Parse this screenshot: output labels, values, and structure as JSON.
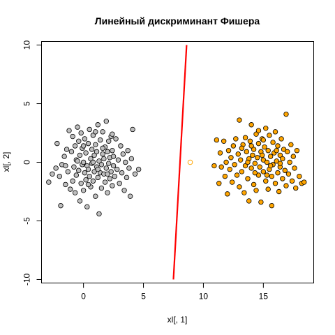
{
  "chart_data": {
    "type": "scatter",
    "title": "Линейный дискриминант Фишера",
    "xlabel": "xl[, 1]",
    "ylabel": "xl[, 2]",
    "xlim": [
      -3.5,
      19.2
    ],
    "ylim": [
      -10.3,
      10.3
    ],
    "x_ticks": [
      0,
      5,
      10,
      15
    ],
    "x_tick_labels": [
      "0",
      "5",
      "10",
      "15"
    ],
    "y_ticks": [
      -10,
      -5,
      0,
      5,
      10
    ],
    "y_tick_labels": [
      "-10",
      "-5",
      "0",
      "5",
      "10"
    ],
    "grid": false,
    "legend": "none",
    "series": [
      {
        "color": "#bebebe",
        "marker": "filled-circle",
        "points": [
          [
            -2.9,
            -1.7
          ],
          [
            -2.6,
            -1.0
          ],
          [
            -2.3,
            -0.5
          ],
          [
            -2.2,
            1.6
          ],
          [
            -2.0,
            -1.2
          ],
          [
            -1.9,
            -3.7
          ],
          [
            -1.8,
            -0.2
          ],
          [
            -1.6,
            0.5
          ],
          [
            -1.5,
            -1.9
          ],
          [
            -1.4,
            1.1
          ],
          [
            -1.3,
            -0.8
          ],
          [
            -1.2,
            2.7
          ],
          [
            -1.1,
            -2.3
          ],
          [
            -1.0,
            0.9
          ],
          [
            -0.9,
            -1.6
          ],
          [
            -0.9,
            2.2
          ],
          [
            -0.8,
            -0.4
          ],
          [
            -0.7,
            -2.6
          ],
          [
            -0.7,
            1.4
          ],
          [
            -0.6,
            0.2
          ],
          [
            -0.6,
            -1.1
          ],
          [
            -0.5,
            3.0
          ],
          [
            -0.4,
            -0.7
          ],
          [
            -0.4,
            1.8
          ],
          [
            -0.3,
            -3.3
          ],
          [
            -0.3,
            0.6
          ],
          [
            -0.2,
            -1.8
          ],
          [
            -0.2,
            2.5
          ],
          [
            -0.1,
            -0.2
          ],
          [
            -0.1,
            1.2
          ],
          [
            0.0,
            -2.4
          ],
          [
            0.0,
            0.0
          ],
          [
            0.1,
            -0.9
          ],
          [
            0.1,
            2.0
          ],
          [
            0.2,
            -1.5
          ],
          [
            0.2,
            0.8
          ],
          [
            0.3,
            -0.3
          ],
          [
            0.3,
            -3.8
          ],
          [
            0.4,
            1.6
          ],
          [
            0.4,
            -0.6
          ],
          [
            0.5,
            2.8
          ],
          [
            0.5,
            -1.2
          ],
          [
            0.6,
            0.3
          ],
          [
            0.6,
            -2.1
          ],
          [
            0.7,
            1.1
          ],
          [
            0.7,
            -0.1
          ],
          [
            0.8,
            -1.6
          ],
          [
            0.8,
            2.3
          ],
          [
            0.9,
            0.6
          ],
          [
            0.9,
            -0.8
          ],
          [
            1.0,
            -2.9
          ],
          [
            1.0,
            1.5
          ],
          [
            1.1,
            -0.4
          ],
          [
            1.1,
            0.9
          ],
          [
            1.2,
            -1.3
          ],
          [
            1.2,
            3.2
          ],
          [
            1.3,
            0.1
          ],
          [
            1.3,
            -4.4
          ],
          [
            1.4,
            -0.9
          ],
          [
            1.4,
            1.9
          ],
          [
            1.5,
            -0.2
          ],
          [
            1.5,
            -2.2
          ],
          [
            1.6,
            0.7
          ],
          [
            1.6,
            2.6
          ],
          [
            1.7,
            -1.0
          ],
          [
            1.7,
            0.3
          ],
          [
            1.8,
            -1.7
          ],
          [
            1.8,
            1.3
          ],
          [
            1.9,
            -0.5
          ],
          [
            1.9,
            3.5
          ],
          [
            2.0,
            0.9
          ],
          [
            2.0,
            -2.6
          ],
          [
            2.1,
            -0.1
          ],
          [
            2.1,
            1.8
          ],
          [
            2.2,
            -1.4
          ],
          [
            2.2,
            0.4
          ],
          [
            2.3,
            2.2
          ],
          [
            2.3,
            -0.8
          ],
          [
            2.4,
            -2.0
          ],
          [
            2.4,
            1.0
          ],
          [
            2.5,
            -0.3
          ],
          [
            2.5,
            0.5
          ],
          [
            2.6,
            -1.2
          ],
          [
            2.7,
            2.0
          ],
          [
            2.8,
            -0.6
          ],
          [
            2.9,
            0.2
          ],
          [
            3.0,
            -1.8
          ],
          [
            3.1,
            1.4
          ],
          [
            3.2,
            -0.9
          ],
          [
            3.3,
            0.7
          ],
          [
            3.4,
            -2.4
          ],
          [
            3.5,
            0.0
          ],
          [
            3.6,
            -1.3
          ],
          [
            3.7,
            1.0
          ],
          [
            3.8,
            -0.5
          ],
          [
            3.9,
            -2.9
          ],
          [
            4.0,
            0.3
          ],
          [
            4.1,
            2.8
          ],
          [
            4.3,
            -1.0
          ],
          [
            4.6,
            -0.6
          ],
          [
            -0.5,
            0.1
          ],
          [
            0.0,
            1.4
          ],
          [
            0.4,
            -1.9
          ],
          [
            0.8,
            0.0
          ],
          [
            1.2,
            -0.6
          ],
          [
            1.6,
            1.2
          ],
          [
            2.0,
            -1.0
          ],
          [
            2.4,
            2.4
          ],
          [
            -1.5,
            -0.3
          ],
          [
            1.0,
            2.6
          ]
        ]
      },
      {
        "color": "#ffa500",
        "marker": "filled-circle",
        "points": [
          [
            10.9,
            -0.3
          ],
          [
            11.1,
            1.9
          ],
          [
            11.3,
            -1.8
          ],
          [
            11.4,
            0.8
          ],
          [
            11.5,
            -0.4
          ],
          [
            11.7,
            1.8
          ],
          [
            11.8,
            -1.2
          ],
          [
            11.9,
            0.0
          ],
          [
            12.0,
            -2.7
          ],
          [
            12.1,
            1.0
          ],
          [
            12.2,
            -0.6
          ],
          [
            12.3,
            0.4
          ],
          [
            12.4,
            -1.7
          ],
          [
            12.5,
            1.4
          ],
          [
            12.6,
            -0.2
          ],
          [
            12.7,
            2.0
          ],
          [
            12.8,
            -1.1
          ],
          [
            12.9,
            0.7
          ],
          [
            13.0,
            -2.1
          ],
          [
            13.0,
            3.6
          ],
          [
            13.1,
            0.2
          ],
          [
            13.2,
            -0.8
          ],
          [
            13.3,
            1.5
          ],
          [
            13.4,
            -2.6
          ],
          [
            13.5,
            -0.3
          ],
          [
            13.5,
            2.1
          ],
          [
            13.6,
            0.9
          ],
          [
            13.7,
            -1.4
          ],
          [
            13.8,
            0.3
          ],
          [
            13.8,
            -3.3
          ],
          [
            13.9,
            1.8
          ],
          [
            14.0,
            -0.5
          ],
          [
            14.0,
            3.2
          ],
          [
            14.1,
            0.6
          ],
          [
            14.2,
            -1.9
          ],
          [
            14.2,
            1.1
          ],
          [
            14.3,
            -0.1
          ],
          [
            14.4,
            2.4
          ],
          [
            14.4,
            -2.4
          ],
          [
            14.5,
            0.4
          ],
          [
            14.6,
            -1.1
          ],
          [
            14.6,
            1.6
          ],
          [
            14.7,
            -0.4
          ],
          [
            14.8,
            0.9
          ],
          [
            14.8,
            -3.4
          ],
          [
            14.9,
            2.0
          ],
          [
            15.0,
            -0.8
          ],
          [
            15.0,
            0.2
          ],
          [
            15.1,
            1.3
          ],
          [
            15.2,
            -1.6
          ],
          [
            15.2,
            2.9
          ],
          [
            15.3,
            0.0
          ],
          [
            15.4,
            -2.3
          ],
          [
            15.4,
            1.0
          ],
          [
            15.5,
            -0.6
          ],
          [
            15.5,
            2.3
          ],
          [
            15.6,
            0.5
          ],
          [
            15.7,
            -1.2
          ],
          [
            15.7,
            -3.7
          ],
          [
            15.8,
            1.7
          ],
          [
            15.8,
            -0.2
          ],
          [
            15.9,
            0.8
          ],
          [
            16.0,
            -1.8
          ],
          [
            16.0,
            2.6
          ],
          [
            16.1,
            0.1
          ],
          [
            16.2,
            -0.9
          ],
          [
            16.2,
            1.4
          ],
          [
            16.3,
            -2.5
          ],
          [
            16.4,
            0.6
          ],
          [
            16.4,
            -0.4
          ],
          [
            16.5,
            2.0
          ],
          [
            16.6,
            -1.4
          ],
          [
            16.6,
            0.3
          ],
          [
            16.7,
            1.1
          ],
          [
            16.8,
            -0.7
          ],
          [
            16.9,
            -2.0
          ],
          [
            16.9,
            4.1
          ],
          [
            17.0,
            0.9
          ],
          [
            17.1,
            -1.0
          ],
          [
            17.2,
            0.0
          ],
          [
            17.3,
            1.5
          ],
          [
            17.4,
            -1.6
          ],
          [
            17.5,
            0.5
          ],
          [
            17.6,
            -0.5
          ],
          [
            17.7,
            -2.2
          ],
          [
            17.8,
            1.0
          ],
          [
            18.0,
            -1.2
          ],
          [
            18.2,
            -1.8
          ],
          [
            18.4,
            -1.7
          ],
          [
            15.0,
            1.9
          ],
          [
            13.7,
            0.0
          ],
          [
            14.3,
            -0.9
          ],
          [
            14.9,
            0.6
          ],
          [
            15.6,
            -0.3
          ],
          [
            16.1,
            1.0
          ],
          [
            13.2,
            1.2
          ],
          [
            14.6,
            2.7
          ],
          [
            15.3,
            -1.1
          ],
          [
            16.4,
            -0.1
          ],
          [
            14.0,
            1.4
          ]
        ]
      },
      {
        "color": "#ffa500",
        "marker": "open-circle",
        "points": [
          [
            8.9,
            0.0
          ]
        ]
      }
    ],
    "lines": [
      {
        "color": "#ff0000",
        "points": [
          [
            7.5,
            -10.0
          ],
          [
            8.6,
            10.0
          ]
        ]
      }
    ]
  }
}
